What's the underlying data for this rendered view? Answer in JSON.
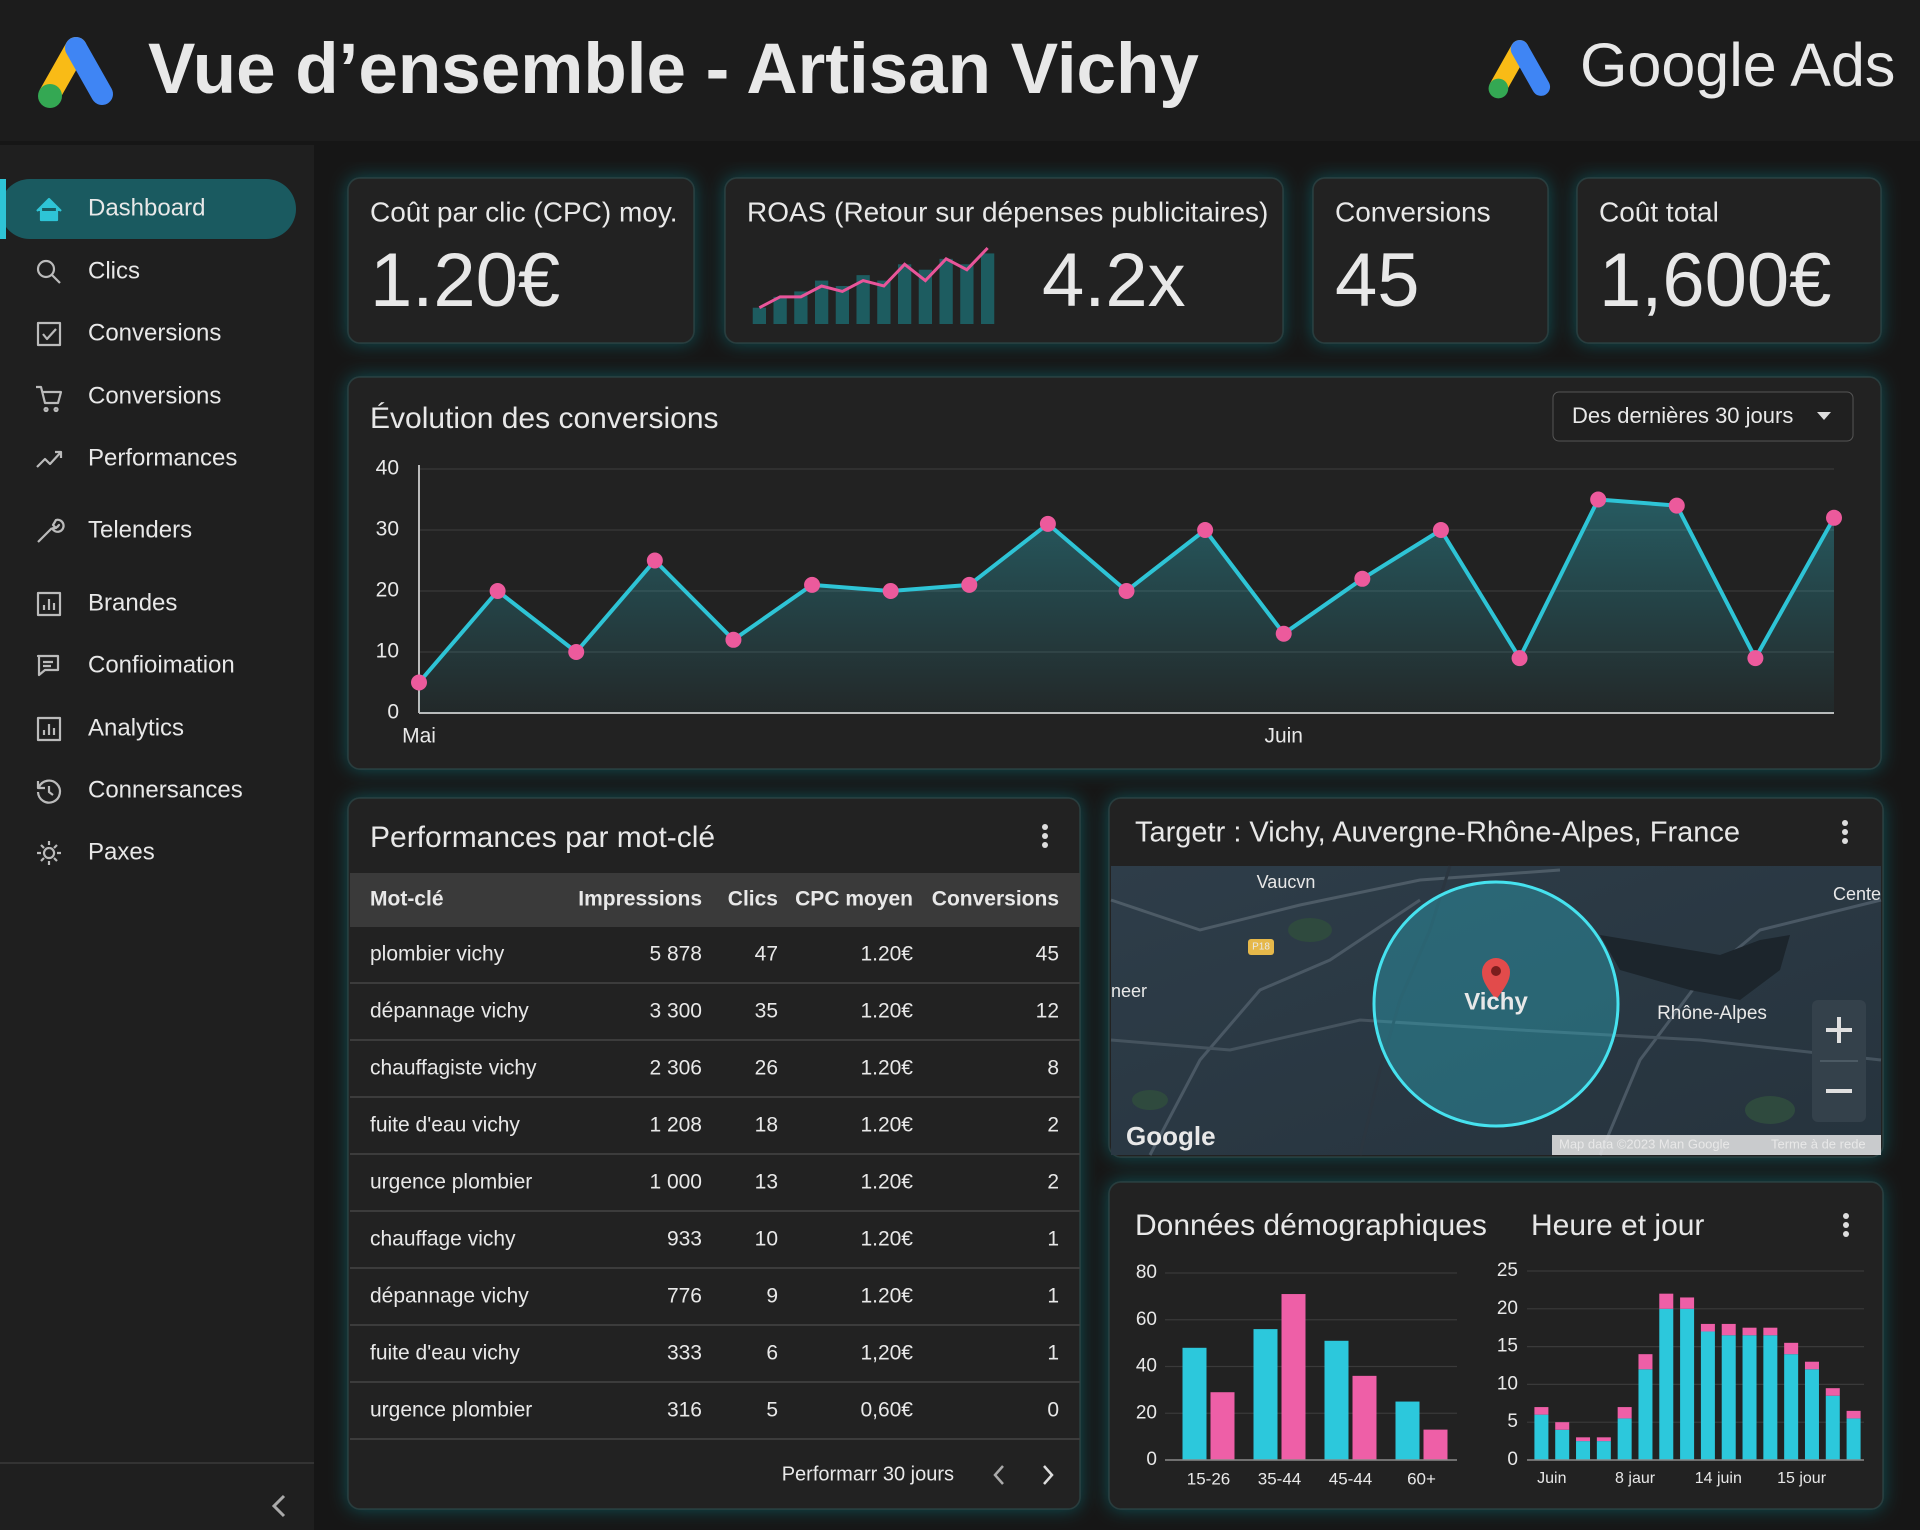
{
  "header": {
    "title": "Vue d’ensemble - Artisan Vichy",
    "brand": "Google Ads"
  },
  "sidebar": {
    "items": [
      "Dashboard",
      "Clics",
      "Conversions",
      "Conversions",
      "Performances",
      "Telenders",
      "Brandes",
      "Confioimation",
      "Analytics",
      "Connersances",
      "Paxes"
    ],
    "active": 0
  },
  "kpis": [
    {
      "label": "Coût par clic (CPC) moy.",
      "value": "1.20€"
    },
    {
      "label": "ROAS (Retour sur dépenses publicitaires)",
      "value": "4.2x"
    },
    {
      "label": "Conversions",
      "value": "45"
    },
    {
      "label": "Coût total",
      "value": "1,600€"
    }
  ],
  "chart_data": [
    {
      "type": "sparkline",
      "bars": [
        3,
        5,
        6,
        8,
        7,
        9,
        8,
        11,
        10,
        12,
        11,
        13
      ],
      "line": [
        3,
        5,
        5,
        7,
        6,
        8,
        7,
        11,
        8,
        12,
        10,
        14
      ],
      "bar_color": "#1d5c60",
      "line_color": "#e8559a"
    },
    {
      "type": "line",
      "title": "Évolution des conversions",
      "control": "Des dernières 30 jours",
      "categories": [
        "Mai",
        null,
        null,
        null,
        null,
        null,
        null,
        null,
        null,
        null,
        null,
        "Juin",
        null,
        null,
        null,
        null,
        null,
        null,
        null
      ],
      "values": [
        5,
        20,
        10,
        25,
        12,
        21,
        20,
        21,
        31,
        20,
        30,
        13,
        22,
        30,
        9,
        35,
        34,
        9,
        32
      ],
      "color": "#2ec4d6",
      "marker_color": "#ec5a9c",
      "ylim": [
        0,
        40
      ],
      "yticks": [
        0,
        10,
        20,
        30,
        40
      ],
      "grid": true
    },
    {
      "type": "bar",
      "title": "Données démographiques",
      "categories": [
        "15-26",
        "35-44",
        "45-44",
        "60+"
      ],
      "series": [
        {
          "color": "#2cc8dc",
          "values": [
            48,
            56,
            51,
            25
          ]
        },
        {
          "color": "#ee5fa7",
          "values": [
            29,
            71,
            36,
            13
          ]
        }
      ],
      "ylim": [
        0,
        80
      ],
      "yticks": [
        0,
        20,
        40,
        60,
        80
      ],
      "grid": true
    },
    {
      "type": "stacked_bar",
      "title": "Heure et jour",
      "categories": [
        "Juin",
        null,
        null,
        null,
        "8 jaur",
        null,
        null,
        null,
        "14 juin",
        null,
        null,
        null,
        "15 jour",
        null,
        null,
        null
      ],
      "series": [
        {
          "color": "#2cc8dc",
          "values": [
            6,
            4,
            2.5,
            2.5,
            5.5,
            12,
            20,
            20,
            17,
            16.5,
            16.5,
            16.5,
            14,
            12,
            8.5,
            5.5
          ]
        },
        {
          "color": "#ee5fa7",
          "values": [
            1,
            1,
            0.5,
            0.5,
            1.5,
            2,
            2,
            1.5,
            1,
            1.5,
            1,
            1,
            1.5,
            1,
            1,
            1
          ]
        }
      ],
      "ylim": [
        0,
        25
      ],
      "yticks": [
        0,
        5,
        10,
        15,
        20,
        25
      ],
      "grid": true
    }
  ],
  "table": {
    "title": "Performances par mot-clé",
    "columns": [
      "Mot-clé",
      "Impressions",
      "Clics",
      "CPC moyen",
      "Conversions"
    ],
    "rows": [
      [
        "plombier vichy",
        "5 878",
        "47",
        "1.20€",
        "45"
      ],
      [
        "dépannage vichy",
        "3 300",
        "35",
        "1.20€",
        "12"
      ],
      [
        "chauffagiste vichy",
        "2 306",
        "26",
        "1.20€",
        "8"
      ],
      [
        "fuite d'eau vichy",
        "1 208",
        "18",
        "1.20€",
        "2"
      ],
      [
        "urgence plombier",
        "1 000",
        "13",
        "1.20€",
        "2"
      ],
      [
        "chauffage vichy",
        "933",
        "10",
        "1.20€",
        "1"
      ],
      [
        "dépannage vichy",
        "776",
        "9",
        "1.20€",
        "1"
      ],
      [
        "fuite d'eau vichy",
        "333",
        "6",
        "1,20€",
        "1"
      ],
      [
        "urgence plombier",
        "316",
        "5",
        "0,60€",
        "0"
      ]
    ],
    "footer": "Performarr 30 jours"
  },
  "map": {
    "title": "Targetr : Vichy, Auvergne-Rhône-Alpes, France",
    "place": "Vichy",
    "labels": [
      "Vaucvn",
      "Cente",
      "neer",
      "P18",
      "Rhône-Alpes"
    ],
    "logo": "Google",
    "attribution": "Map data ©2023 Man Google",
    "terms": "Terme à de rede"
  }
}
